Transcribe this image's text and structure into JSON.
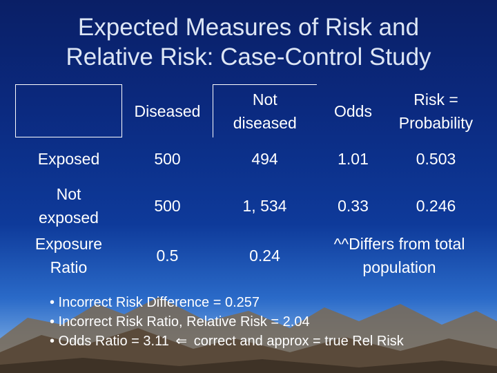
{
  "slide": {
    "title_line1": "Expected Measures of Risk and",
    "title_line2": "Relative Risk: Case-Control Study"
  },
  "table": {
    "headers": {
      "diseased": "Diseased",
      "not_diseased_1": "Not",
      "not_diseased_2": "diseased",
      "odds": "Odds",
      "risk_1": "Risk =",
      "risk_2": "Probability"
    },
    "rows": [
      {
        "label_1": "Exposed",
        "label_2": "",
        "diseased": "500",
        "not_diseased": "494",
        "odds": "1.01",
        "risk": "0.503"
      },
      {
        "label_1": "Not",
        "label_2": "exposed",
        "diseased": "500",
        "not_diseased": "1, 534",
        "odds": "0.33",
        "risk": "0.246"
      },
      {
        "label_1": "Exposure",
        "label_2": "Ratio",
        "diseased": "0.5",
        "not_diseased": "0.24",
        "note_1": "^^Differs from total",
        "note_2": "population"
      }
    ]
  },
  "notes": {
    "line1": "• Incorrect Risk Difference = 0.257",
    "line2": "• Incorrect Risk Ratio, Relative Risk = 2.04",
    "line3_a": "• Odds Ratio = 3.11",
    "line3_arrow": "⇐",
    "line3_b": "correct and approx = true Rel Risk"
  }
}
